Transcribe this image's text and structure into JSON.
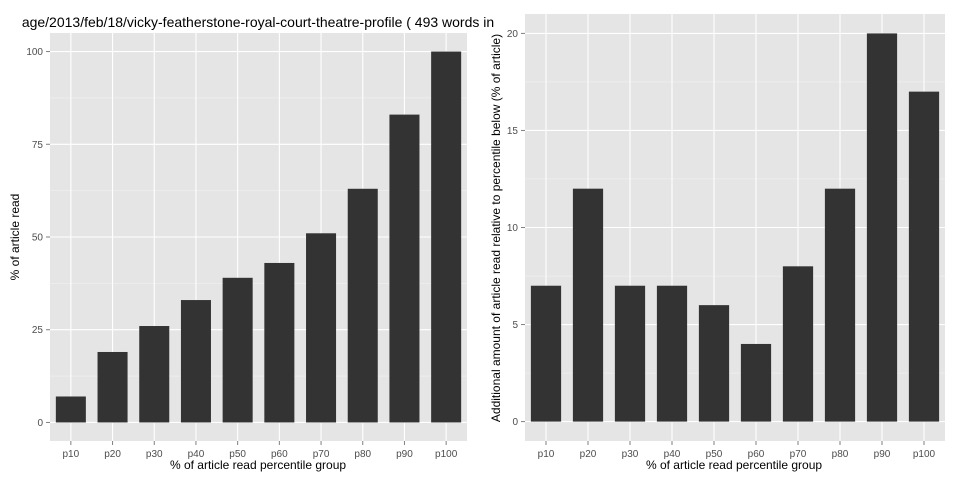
{
  "style": {
    "panel_background": "#e5e5e5",
    "grid_major": "#ffffff",
    "grid_minor": "#f2f2f2",
    "bar_fill": "#333333"
  },
  "chart_data": [
    {
      "type": "bar",
      "title": "age/2013/feb/18/vicky-featherstone-royal-court-theatre-profile ( 493 words in",
      "xlabel": "% of article read percentile group",
      "ylabel": "% of article read",
      "categories": [
        "p10",
        "p20",
        "p30",
        "p40",
        "p50",
        "p60",
        "p70",
        "p80",
        "p90",
        "p100"
      ],
      "values": [
        7,
        19,
        26,
        33,
        39,
        43,
        51,
        63,
        83,
        100
      ],
      "ylim": [
        -5,
        105
      ],
      "yticks": [
        0,
        25,
        50,
        75,
        100
      ],
      "grid": true
    },
    {
      "type": "bar",
      "title": "",
      "xlabel": "% of article read percentile group",
      "ylabel": "Additional amount of article read relative to percentile below (% of article)",
      "categories": [
        "p10",
        "p20",
        "p30",
        "p40",
        "p50",
        "p60",
        "p70",
        "p80",
        "p90",
        "p100"
      ],
      "values": [
        7,
        12,
        7,
        7,
        6,
        4,
        8,
        12,
        20,
        17
      ],
      "ylim": [
        -1,
        21
      ],
      "yticks": [
        0,
        5,
        10,
        15,
        20
      ],
      "grid": true
    }
  ]
}
